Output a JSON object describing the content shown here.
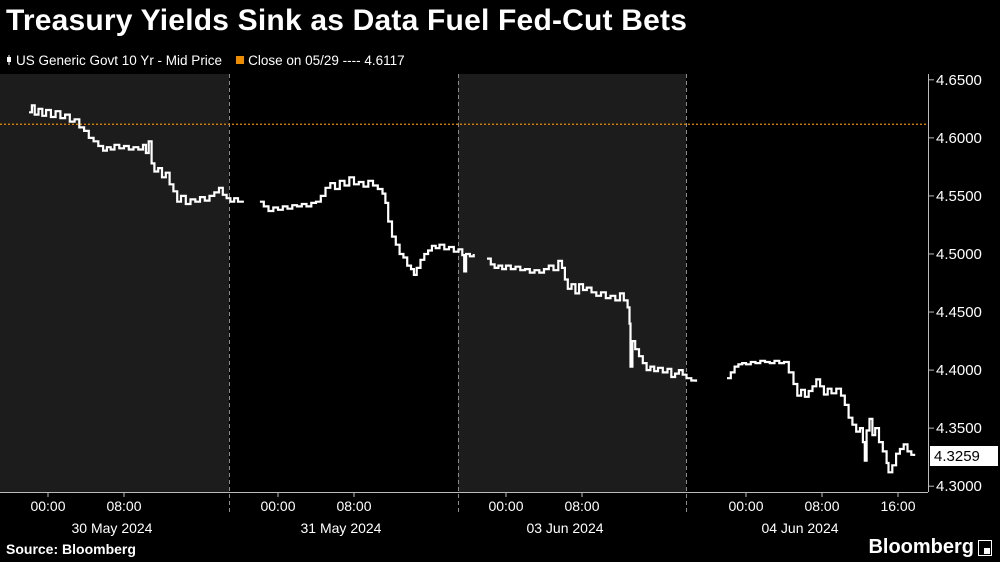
{
  "header": {
    "title": "Treasury Yields Sink as Data Fuel Fed-Cut Bets"
  },
  "legend": {
    "items": [
      {
        "label": "US Generic Govt 10 Yr - Mid Price",
        "color": "#ffffff",
        "icon": "candlestick-icon"
      },
      {
        "label": "Close on 05/29 ---- 4.6117",
        "color": "#f08c00",
        "icon": "square-icon"
      }
    ]
  },
  "footer": {
    "source": "Source: Bloomberg",
    "brand": "Bloomberg"
  },
  "chart_data": {
    "type": "line",
    "title": "Treasury Yields Sink as Data Fuel Fed-Cut Bets",
    "xlabel": "",
    "ylabel": "",
    "ylim": [
      4.295,
      4.655
    ],
    "yticks": [
      "4.6500",
      "4.6000",
      "4.5500",
      "4.5000",
      "4.4500",
      "4.4000",
      "4.3500",
      "4.3000"
    ],
    "last_value_label": "4.3259",
    "reference_line": {
      "label": "Close on 05/29",
      "value": 4.6117,
      "color": "#f08c00"
    },
    "grid": false,
    "legend_position": "top-left",
    "day_labels": [
      "30 May 2024",
      "31 May 2024",
      "03 Jun 2024",
      "04 Jun 2024"
    ],
    "hour_labels": [
      {
        "label": "00:00",
        "day": 0,
        "hour": 0
      },
      {
        "label": "08:00",
        "day": 0,
        "hour": 8
      },
      {
        "label": "00:00",
        "day": 1,
        "hour": 0
      },
      {
        "label": "08:00",
        "day": 1,
        "hour": 8
      },
      {
        "label": "00:00",
        "day": 2,
        "hour": 0
      },
      {
        "label": "08:00",
        "day": 2,
        "hour": 8
      },
      {
        "label": "00:00",
        "day": 3,
        "hour": 0
      },
      {
        "label": "08:00",
        "day": 3,
        "hour": 8
      },
      {
        "label": "16:00",
        "day": 3,
        "hour": 16
      }
    ],
    "series": [
      {
        "name": "US Generic Govt 10 Yr - Mid Price",
        "color": "#ffffff",
        "segments": [
          {
            "day": 0,
            "points": [
              [
                -2.0,
                4.622
              ],
              [
                -1.7,
                4.628
              ],
              [
                -1.4,
                4.62
              ],
              [
                -1.0,
                4.625
              ],
              [
                -0.6,
                4.619
              ],
              [
                -0.2,
                4.624
              ],
              [
                0.3,
                4.618
              ],
              [
                0.8,
                4.623
              ],
              [
                1.3,
                4.617
              ],
              [
                1.8,
                4.62
              ],
              [
                2.3,
                4.614
              ],
              [
                2.8,
                4.616
              ],
              [
                3.3,
                4.609
              ],
              [
                3.8,
                4.606
              ],
              [
                4.3,
                4.6
              ],
              [
                4.8,
                4.597
              ],
              [
                5.3,
                4.593
              ],
              [
                5.8,
                4.589
              ],
              [
                6.2,
                4.592
              ],
              [
                6.6,
                4.59
              ],
              [
                7.0,
                4.594
              ],
              [
                7.5,
                4.591
              ],
              [
                8.0,
                4.593
              ],
              [
                8.5,
                4.59
              ],
              [
                9.0,
                4.592
              ],
              [
                9.5,
                4.59
              ],
              [
                10.0,
                4.594
              ],
              [
                10.3,
                4.587
              ],
              [
                10.6,
                4.597
              ],
              [
                10.9,
                4.578
              ],
              [
                11.2,
                4.571
              ],
              [
                11.6,
                4.574
              ],
              [
                12.0,
                4.566
              ],
              [
                12.4,
                4.57
              ],
              [
                12.8,
                4.56
              ],
              [
                13.2,
                4.554
              ],
              [
                13.6,
                4.545
              ],
              [
                14.0,
                4.55
              ],
              [
                14.5,
                4.543
              ],
              [
                15.0,
                4.547
              ],
              [
                15.5,
                4.545
              ],
              [
                16.0,
                4.549
              ],
              [
                16.5,
                4.546
              ],
              [
                17.0,
                4.55
              ],
              [
                17.5,
                4.553
              ],
              [
                18.0,
                4.557
              ],
              [
                18.4,
                4.551
              ],
              [
                18.8,
                4.548
              ],
              [
                19.2,
                4.545
              ],
              [
                19.6,
                4.548
              ],
              [
                20.0,
                4.545
              ],
              [
                20.5,
                4.546
              ]
            ]
          },
          {
            "day": 1,
            "points": [
              [
                -1.9,
                4.545
              ],
              [
                -1.5,
                4.541
              ],
              [
                -1.0,
                4.537
              ],
              [
                -0.5,
                4.54
              ],
              [
                0.0,
                4.538
              ],
              [
                0.5,
                4.541
              ],
              [
                1.0,
                4.539
              ],
              [
                1.5,
                4.542
              ],
              [
                2.0,
                4.541
              ],
              [
                2.5,
                4.543
              ],
              [
                3.0,
                4.541
              ],
              [
                3.5,
                4.544
              ],
              [
                4.0,
                4.545
              ],
              [
                4.5,
                4.55
              ],
              [
                5.0,
                4.557
              ],
              [
                5.5,
                4.561
              ],
              [
                6.0,
                4.556
              ],
              [
                6.5,
                4.563
              ],
              [
                7.0,
                4.559
              ],
              [
                7.5,
                4.566
              ],
              [
                8.0,
                4.56
              ],
              [
                8.5,
                4.562
              ],
              [
                9.0,
                4.558
              ],
              [
                9.5,
                4.563
              ],
              [
                10.0,
                4.559
              ],
              [
                10.5,
                4.556
              ],
              [
                11.0,
                4.552
              ],
              [
                11.3,
                4.544
              ],
              [
                11.6,
                4.528
              ],
              [
                12.0,
                4.515
              ],
              [
                12.4,
                4.508
              ],
              [
                12.8,
                4.5
              ],
              [
                13.2,
                4.497
              ],
              [
                13.6,
                4.49
              ],
              [
                14.0,
                4.487
              ],
              [
                14.3,
                4.482
              ],
              [
                14.6,
                4.488
              ],
              [
                15.0,
                4.495
              ],
              [
                15.4,
                4.5
              ],
              [
                15.8,
                4.503
              ],
              [
                16.2,
                4.507
              ],
              [
                16.6,
                4.505
              ],
              [
                17.0,
                4.508
              ],
              [
                17.5,
                4.504
              ],
              [
                18.0,
                4.506
              ],
              [
                18.5,
                4.502
              ],
              [
                19.0,
                4.504
              ],
              [
                19.4,
                4.499
              ],
              [
                19.6,
                4.485
              ],
              [
                19.8,
                4.5
              ],
              [
                20.2,
                4.498
              ],
              [
                20.6,
                4.5
              ]
            ]
          },
          {
            "day": 2,
            "points": [
              [
                -2.0,
                4.496
              ],
              [
                -1.6,
                4.491
              ],
              [
                -1.2,
                4.488
              ],
              [
                -0.8,
                4.49
              ],
              [
                -0.4,
                4.487
              ],
              [
                0.0,
                4.49
              ],
              [
                0.5,
                4.487
              ],
              [
                1.0,
                4.489
              ],
              [
                1.5,
                4.486
              ],
              [
                2.0,
                4.487
              ],
              [
                2.5,
                4.484
              ],
              [
                3.0,
                4.486
              ],
              [
                3.5,
                4.484
              ],
              [
                4.0,
                4.487
              ],
              [
                4.5,
                4.49
              ],
              [
                5.0,
                4.486
              ],
              [
                5.5,
                4.494
              ],
              [
                5.9,
                4.488
              ],
              [
                6.2,
                4.478
              ],
              [
                6.5,
                4.47
              ],
              [
                6.9,
                4.474
              ],
              [
                7.3,
                4.466
              ],
              [
                7.7,
                4.474
              ],
              [
                8.1,
                4.469
              ],
              [
                8.5,
                4.471
              ],
              [
                9.0,
                4.467
              ],
              [
                9.5,
                4.464
              ],
              [
                10.0,
                4.467
              ],
              [
                10.5,
                4.462
              ],
              [
                11.0,
                4.464
              ],
              [
                11.5,
                4.46
              ],
              [
                12.0,
                4.466
              ],
              [
                12.4,
                4.46
              ],
              [
                12.8,
                4.454
              ],
              [
                13.0,
                4.44
              ],
              [
                13.1,
                4.403
              ],
              [
                13.3,
                4.425
              ],
              [
                13.6,
                4.418
              ],
              [
                14.0,
                4.412
              ],
              [
                14.4,
                4.406
              ],
              [
                14.8,
                4.4
              ],
              [
                15.2,
                4.403
              ],
              [
                15.6,
                4.399
              ],
              [
                16.0,
                4.402
              ],
              [
                16.5,
                4.398
              ],
              [
                17.0,
                4.401
              ],
              [
                17.4,
                4.394
              ],
              [
                17.8,
                4.397
              ],
              [
                18.2,
                4.4
              ],
              [
                18.6,
                4.396
              ],
              [
                19.0,
                4.393
              ],
              [
                19.5,
                4.391
              ],
              [
                20.0,
                4.39
              ]
            ]
          },
          {
            "day": 3,
            "points": [
              [
                -2.0,
                4.393
              ],
              [
                -1.6,
                4.398
              ],
              [
                -1.2,
                4.403
              ],
              [
                -0.8,
                4.405
              ],
              [
                -0.4,
                4.406
              ],
              [
                0.0,
                4.405
              ],
              [
                0.5,
                4.407
              ],
              [
                1.0,
                4.406
              ],
              [
                1.5,
                4.408
              ],
              [
                2.0,
                4.407
              ],
              [
                2.5,
                4.406
              ],
              [
                3.0,
                4.408
              ],
              [
                3.5,
                4.406
              ],
              [
                4.0,
                4.407
              ],
              [
                4.5,
                4.398
              ],
              [
                5.0,
                4.388
              ],
              [
                5.4,
                4.378
              ],
              [
                5.8,
                4.383
              ],
              [
                6.2,
                4.377
              ],
              [
                6.6,
                4.382
              ],
              [
                7.0,
                4.386
              ],
              [
                7.4,
                4.392
              ],
              [
                7.8,
                4.386
              ],
              [
                8.2,
                4.379
              ],
              [
                8.6,
                4.384
              ],
              [
                9.0,
                4.38
              ],
              [
                9.5,
                4.384
              ],
              [
                10.0,
                4.378
              ],
              [
                10.4,
                4.37
              ],
              [
                10.8,
                4.359
              ],
              [
                11.2,
                4.353
              ],
              [
                11.6,
                4.347
              ],
              [
                12.0,
                4.35
              ],
              [
                12.3,
                4.338
              ],
              [
                12.5,
                4.322
              ],
              [
                12.7,
                4.348
              ],
              [
                13.0,
                4.358
              ],
              [
                13.3,
                4.344
              ],
              [
                13.6,
                4.35
              ],
              [
                14.0,
                4.338
              ],
              [
                14.4,
                4.33
              ],
              [
                14.8,
                4.32
              ],
              [
                15.0,
                4.312
              ],
              [
                15.4,
                4.318
              ],
              [
                15.8,
                4.328
              ],
              [
                16.2,
                4.332
              ],
              [
                16.6,
                4.336
              ],
              [
                17.0,
                4.33
              ],
              [
                17.4,
                4.327
              ],
              [
                17.7,
                4.326
              ]
            ]
          }
        ]
      }
    ]
  }
}
